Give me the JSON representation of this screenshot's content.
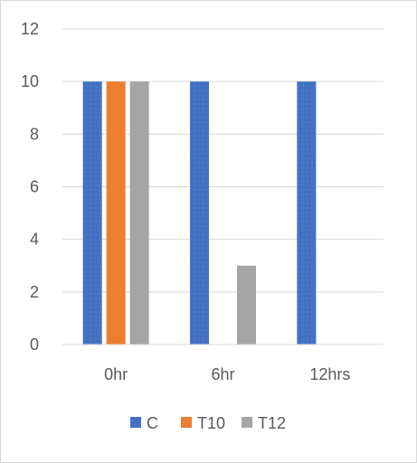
{
  "chart_data": {
    "type": "bar",
    "categories": [
      "0hr",
      "6hr",
      "12hrs"
    ],
    "series": [
      {
        "name": "C",
        "values": [
          10,
          10,
          10
        ],
        "color": "#4472C4"
      },
      {
        "name": "T10",
        "values": [
          10,
          0,
          0
        ],
        "color": "#ED7D31"
      },
      {
        "name": "T12",
        "values": [
          10,
          3,
          0
        ],
        "color": "#A5A5A5"
      }
    ],
    "ylim": [
      0,
      12
    ],
    "yticks": [
      "0",
      "2",
      "4",
      "6",
      "8",
      "10",
      "12"
    ],
    "grid": true,
    "legend_position": "bottom",
    "title": "",
    "xlabel": "",
    "ylabel": ""
  }
}
